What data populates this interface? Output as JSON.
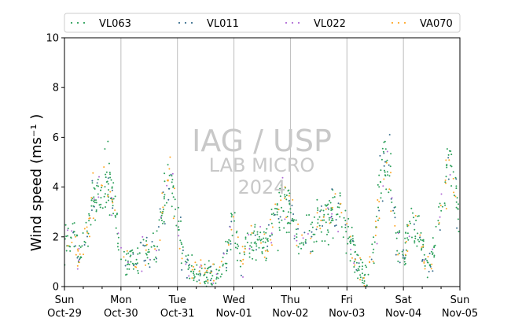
{
  "chart_data": {
    "type": "scatter",
    "title": "",
    "xlabel": "",
    "ylabel": "Wind speed (ms⁻¹ )",
    "ylim": [
      0,
      10
    ],
    "yticks": [
      "0",
      "2",
      "4",
      "6",
      "8",
      "10"
    ],
    "xlim": [
      "2023-10-29T00:00",
      "2023-11-05T00:00"
    ],
    "xticks": [
      {
        "day": "Sun",
        "date": "Oct-29"
      },
      {
        "day": "Mon",
        "date": "Oct-30"
      },
      {
        "day": "Tue",
        "date": "Oct-31"
      },
      {
        "day": "Wed",
        "date": "Nov-01"
      },
      {
        "day": "Thu",
        "date": "Nov-02"
      },
      {
        "day": "Fri",
        "date": "Nov-03"
      },
      {
        "day": "Sat",
        "date": "Nov-04"
      },
      {
        "day": "Sun",
        "date": "Nov-05"
      }
    ],
    "grid": "vertical",
    "legend_placement": "top",
    "watermark": [
      "IAG / USP",
      "LAB MICRO",
      "2024"
    ],
    "series": [
      {
        "name": "VL063",
        "color": "#2ca05a"
      },
      {
        "name": "VL011",
        "color": "#3a6f8f"
      },
      {
        "name": "VL022",
        "color": "#b06ad6"
      },
      {
        "name": "VA070",
        "color": "#ffa726"
      }
    ],
    "daily_profile": [
      {
        "date": "2023-10-29",
        "values": [
          1.7,
          2.0,
          1.2,
          1.8,
          3.4,
          3.8,
          4.3,
          3.2,
          1.4
        ]
      },
      {
        "date": "2023-10-30",
        "values": [
          1.4,
          1.1,
          0.9,
          1.5,
          1.4,
          1.6,
          3.3,
          4.6,
          2.6
        ]
      },
      {
        "date": "2023-10-31",
        "values": [
          2.6,
          1.0,
          0.6,
          0.5,
          0.6,
          0.4,
          0.6,
          1.4,
          2.6
        ]
      },
      {
        "date": "2023-11-01",
        "values": [
          2.6,
          0.8,
          1.7,
          1.8,
          1.8,
          2.2,
          2.8,
          3.1,
          3.2
        ]
      },
      {
        "date": "2023-11-02",
        "values": [
          3.2,
          2.0,
          2.0,
          2.1,
          2.5,
          2.6,
          3.0,
          3.2,
          2.4
        ]
      },
      {
        "date": "2023-11-03",
        "values": [
          2.4,
          1.3,
          0.6,
          0.4,
          2.0,
          4.7,
          4.9,
          2.0,
          1.2
        ]
      },
      {
        "date": "2023-11-04",
        "values": [
          1.2,
          2.5,
          2.4,
          1.2,
          1.0,
          2.6,
          4.2,
          4.8,
          1.6
        ]
      },
      {
        "date": "2023-11-05",
        "values": [
          1.6
        ]
      }
    ]
  }
}
